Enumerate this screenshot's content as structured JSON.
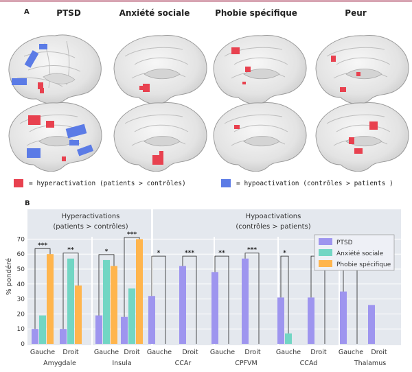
{
  "panel_a": {
    "letter": "A",
    "columns": [
      {
        "title": "PTSD"
      },
      {
        "title": "Anxiété sociale"
      },
      {
        "title": "Phobie spécifique"
      },
      {
        "title": "Peur"
      }
    ],
    "legend": {
      "hyper": "= hyperactivation (patients > contrôles)",
      "hypo": "= hypoactivation (contrôles > patients )"
    },
    "colors": {
      "hyper": "#e8414f",
      "hypo": "#5b7be6",
      "brain": "#ececec"
    }
  },
  "chart_data": {
    "type": "bar",
    "letter": "B",
    "ylabel": "% pondéré",
    "ylim": [
      0,
      75
    ],
    "yticks": [
      0,
      10,
      20,
      30,
      40,
      50,
      60,
      70
    ],
    "group_titles": [
      {
        "line1": "Hyperactivations",
        "line2": "(patients > contrôles)"
      },
      {
        "line1": "Hypoactivations",
        "line2": "(contrôles > patients)"
      }
    ],
    "series": [
      {
        "name": "PTSD",
        "color": "#9e95ef"
      },
      {
        "name": "Anxiété sociale",
        "color": "#72d6c4"
      },
      {
        "name": "Phobie spécifique",
        "color": "#ffb54d"
      }
    ],
    "regions": [
      {
        "name": "Amygdale",
        "sides": [
          {
            "label": "Gauche",
            "values": [
              10,
              19,
              60
            ],
            "sig": "***"
          },
          {
            "label": "Droit",
            "values": [
              10,
              57,
              39
            ],
            "sig": "**"
          }
        ]
      },
      {
        "name": "Insula",
        "sides": [
          {
            "label": "Gauche",
            "values": [
              19,
              56,
              52
            ],
            "sig": "*"
          },
          {
            "label": "Droit",
            "values": [
              18,
              37,
              70
            ],
            "sig": "***"
          }
        ]
      },
      {
        "name": "CCAr",
        "sides": [
          {
            "label": "Gauche",
            "values": [
              32,
              0,
              0
            ],
            "sig": "*"
          },
          {
            "label": "Droit",
            "values": [
              52,
              0,
              0
            ],
            "sig": "***"
          }
        ]
      },
      {
        "name": "CPFVM",
        "sides": [
          {
            "label": "Gauche",
            "values": [
              48,
              0,
              0
            ],
            "sig": "**"
          },
          {
            "label": "Droit",
            "values": [
              57,
              0,
              0
            ],
            "sig": "***"
          }
        ]
      },
      {
        "name": "CCAd",
        "sides": [
          {
            "label": "Gauche",
            "values": [
              31,
              7,
              0
            ],
            "sig": "*"
          },
          {
            "label": "Droit",
            "values": [
              31,
              0,
              0
            ],
            "sig": "*"
          }
        ]
      },
      {
        "name": "Thalamus",
        "sides": [
          {
            "label": "Gauche",
            "values": [
              35,
              0,
              0
            ],
            "sig": "*"
          },
          {
            "label": "Droit",
            "values": [
              26,
              0,
              0
            ],
            "sig": ""
          }
        ]
      }
    ]
  }
}
